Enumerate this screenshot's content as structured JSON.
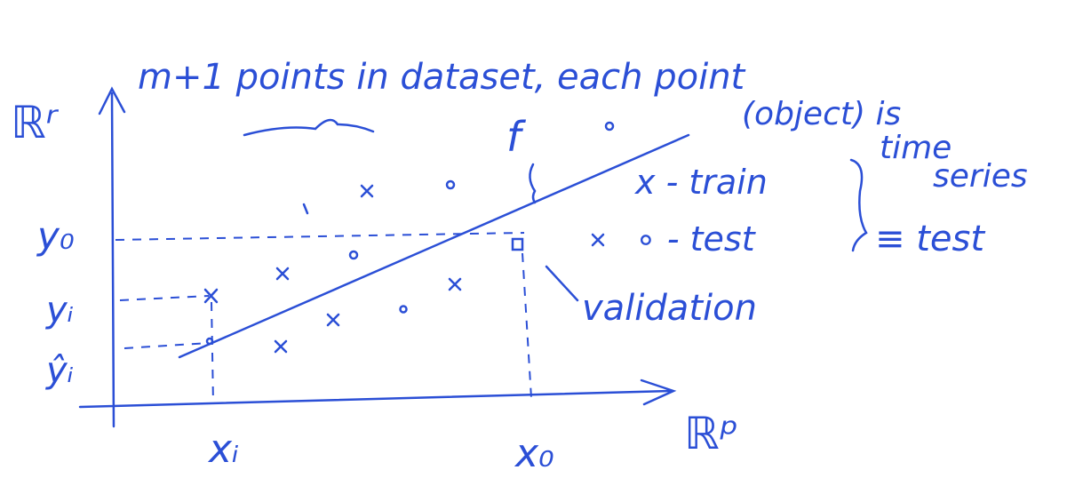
{
  "axes": {
    "y_axis": "ℝʳ",
    "x_axis": "ℝᵖ",
    "y0": "y₀",
    "yi": "yᵢ",
    "yi_hat": "ŷᵢ",
    "xi": "xᵢ",
    "x0": "x₀",
    "model": "f"
  },
  "annotations": {
    "line1": "m+1 points in dataset, each point",
    "line2": "(object) is",
    "line3": "time",
    "line4": "series"
  },
  "legend": {
    "train": "x - train",
    "test": "∘ - test",
    "test_group": "≡ test",
    "validation": "validation"
  }
}
